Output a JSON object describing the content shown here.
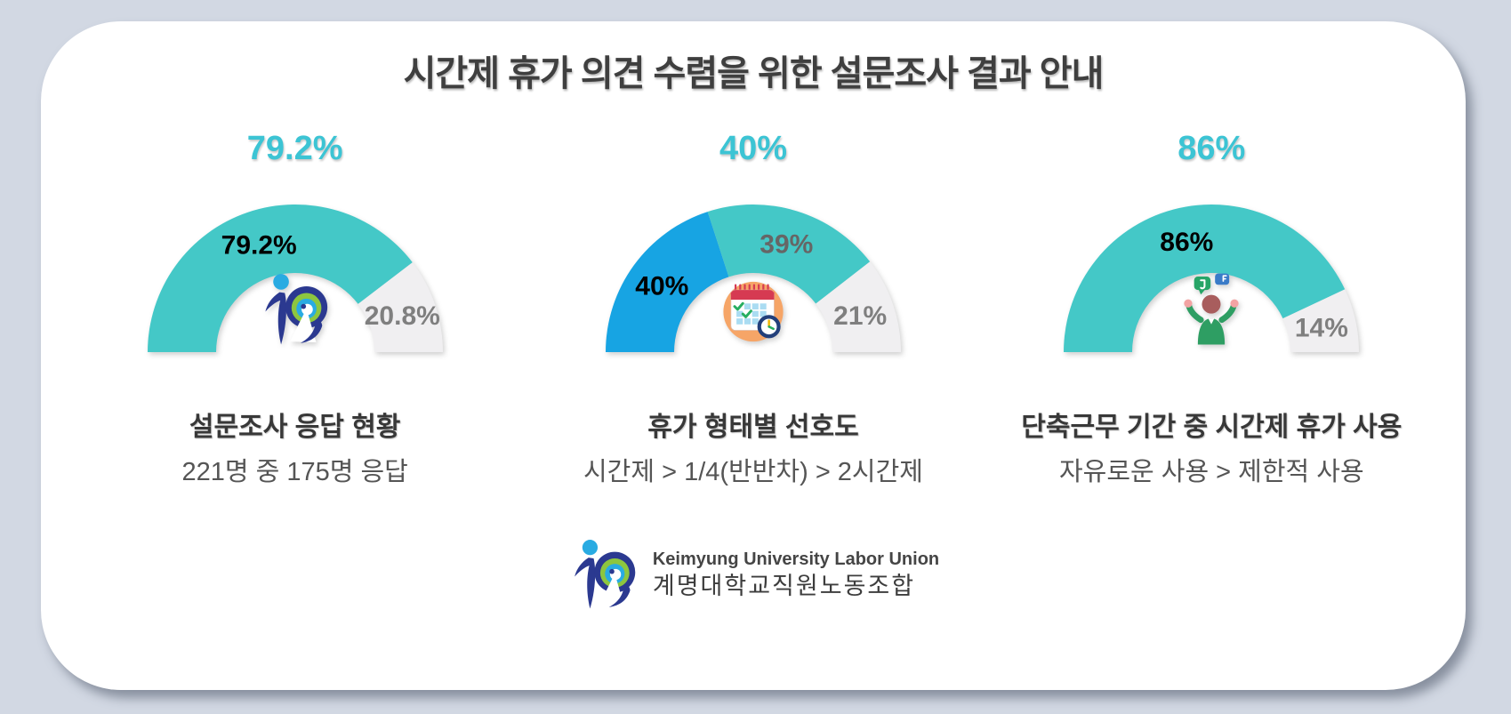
{
  "page": {
    "title": "시간제 휴가 의견 수렴을 위한 설문조사 결과 안내"
  },
  "chart_data": [
    {
      "type": "gauge-donut",
      "headline": "79.2%",
      "title": "설문조사 응답 현황",
      "subtitle": "221명 중 175명 응답",
      "center_icon": "union-logo-icon",
      "span_degrees": 180,
      "segments": [
        {
          "label": "79.2%",
          "value": 79.2,
          "color": "#44c8c7",
          "label_color": "#000000"
        },
        {
          "label": "20.8%",
          "value": 20.8,
          "color": "#f0eff1",
          "label_color": "#7f7f7f"
        }
      ]
    },
    {
      "type": "gauge-donut",
      "headline": "40%",
      "title": "휴가 형태별 선호도",
      "subtitle": "시간제 > 1/4(반반차) > 2시간제",
      "center_icon": "calendar-clock-icon",
      "span_degrees": 180,
      "segments": [
        {
          "label": "40%",
          "value": 40,
          "color": "#17a4e3",
          "label_color": "#000000"
        },
        {
          "label": "39%",
          "value": 39,
          "color": "#44c8c7",
          "label_color": "#666666"
        },
        {
          "label": "21%",
          "value": 21,
          "color": "#f0eff1",
          "label_color": "#7f7f7f"
        }
      ]
    },
    {
      "type": "gauge-donut",
      "headline": "86%",
      "title": "단축근무 기간 중 시간제 휴가 사용",
      "subtitle": "자유로운 사용 > 제한적 사용",
      "center_icon": "person-feedback-icon",
      "span_degrees": 180,
      "segments": [
        {
          "label": "86%",
          "value": 86,
          "color": "#44c8c7",
          "label_color": "#000000"
        },
        {
          "label": "14%",
          "value": 14,
          "color": "#f0eff1",
          "label_color": "#7f7f7f"
        }
      ]
    }
  ],
  "footer": {
    "org_en": "Keimyung University Labor Union",
    "org_kr": "계명대학교직원노동조합"
  },
  "colors": {
    "background": "#d2d8e3",
    "card": "#ffffff",
    "headline_teal": "#3cc4d4",
    "arc_teal": "#44c8c7",
    "arc_blue": "#17a4e3",
    "arc_gray": "#f0eff1",
    "title_text": "#3f3f3f"
  }
}
